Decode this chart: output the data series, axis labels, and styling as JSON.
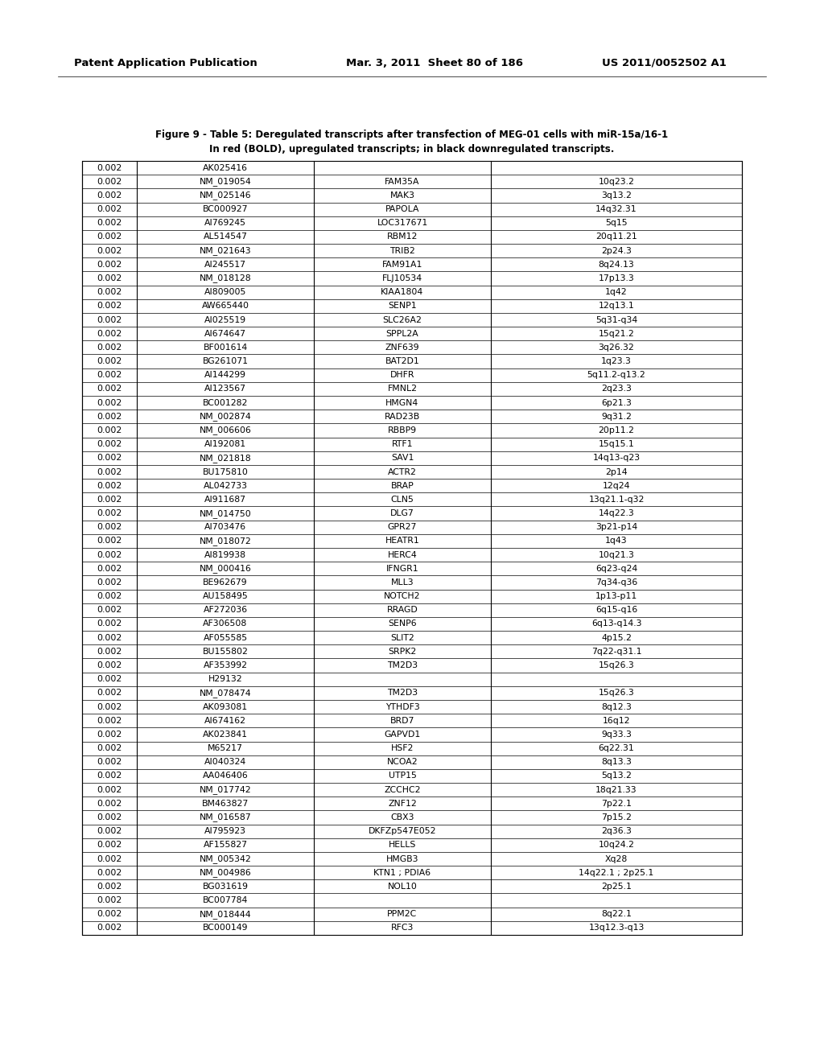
{
  "header_text_left": "Patent Application Publication",
  "header_text_mid": "Mar. 3, 2011  Sheet 80 of 186",
  "header_text_right": "US 2011/0052502 A1",
  "title_line1": "Figure 9 - Table 5: Deregulated transcripts after transfection of MEG-01 cells with miR-15a/16-1",
  "title_line2": "In red (BOLD), upregulated transcripts; in black downregulated transcripts.",
  "rows": [
    [
      "0.002",
      "AK025416",
      "",
      ""
    ],
    [
      "0.002",
      "NM_019054",
      "FAM35A",
      "10q23.2"
    ],
    [
      "0.002",
      "NM_025146",
      "MAK3",
      "3q13.2"
    ],
    [
      "0.002",
      "BC000927",
      "PAPOLA",
      "14q32.31"
    ],
    [
      "0.002",
      "AI769245",
      "LOC317671",
      "5q15"
    ],
    [
      "0.002",
      "AL514547",
      "RBM12",
      "20q11.21"
    ],
    [
      "0.002",
      "NM_021643",
      "TRIB2",
      "2p24.3"
    ],
    [
      "0.002",
      "AI245517",
      "FAM91A1",
      "8q24.13"
    ],
    [
      "0.002",
      "NM_018128",
      "FLJ10534",
      "17p13.3"
    ],
    [
      "0.002",
      "AI809005",
      "KIAA1804",
      "1q42"
    ],
    [
      "0.002",
      "AW665440",
      "SENP1",
      "12q13.1"
    ],
    [
      "0.002",
      "AI025519",
      "SLC26A2",
      "5q31-q34"
    ],
    [
      "0.002",
      "AI674647",
      "SPPL2A",
      "15q21.2"
    ],
    [
      "0.002",
      "BF001614",
      "ZNF639",
      "3q26.32"
    ],
    [
      "0.002",
      "BG261071",
      "BAT2D1",
      "1q23.3"
    ],
    [
      "0.002",
      "AI144299",
      "DHFR",
      "5q11.2-q13.2"
    ],
    [
      "0.002",
      "AI123567",
      "FMNL2",
      "2q23.3"
    ],
    [
      "0.002",
      "BC001282",
      "HMGN4",
      "6p21.3"
    ],
    [
      "0.002",
      "NM_002874",
      "RAD23B",
      "9q31.2"
    ],
    [
      "0.002",
      "NM_006606",
      "RBBP9",
      "20p11.2"
    ],
    [
      "0.002",
      "AI192081",
      "RTF1",
      "15q15.1"
    ],
    [
      "0.002",
      "NM_021818",
      "SAV1",
      "14q13-q23"
    ],
    [
      "0.002",
      "BU175810",
      "ACTR2",
      "2p14"
    ],
    [
      "0.002",
      "AL042733",
      "BRAP",
      "12q24"
    ],
    [
      "0.002",
      "AI911687",
      "CLN5",
      "13q21.1-q32"
    ],
    [
      "0.002",
      "NM_014750",
      "DLG7",
      "14q22.3"
    ],
    [
      "0.002",
      "AI703476",
      "GPR27",
      "3p21-p14"
    ],
    [
      "0.002",
      "NM_018072",
      "HEATR1",
      "1q43"
    ],
    [
      "0.002",
      "AI819938",
      "HERC4",
      "10q21.3"
    ],
    [
      "0.002",
      "NM_000416",
      "IFNGR1",
      "6q23-q24"
    ],
    [
      "0.002",
      "BE962679",
      "MLL3",
      "7q34-q36"
    ],
    [
      "0.002",
      "AU158495",
      "NOTCH2",
      "1p13-p11"
    ],
    [
      "0.002",
      "AF272036",
      "RRAGD",
      "6q15-q16"
    ],
    [
      "0.002",
      "AF306508",
      "SENP6",
      "6q13-q14.3"
    ],
    [
      "0.002",
      "AF055585",
      "SLIT2",
      "4p15.2"
    ],
    [
      "0.002",
      "BU155802",
      "SRPK2",
      "7q22-q31.1"
    ],
    [
      "0.002",
      "AF353992",
      "TM2D3",
      "15q26.3"
    ],
    [
      "0.002",
      "H29132",
      "",
      ""
    ],
    [
      "0.002",
      "NM_078474",
      "TM2D3",
      "15q26.3"
    ],
    [
      "0.002",
      "AK093081",
      "YTHDF3",
      "8q12.3"
    ],
    [
      "0.002",
      "AI674162",
      "BRD7",
      "16q12"
    ],
    [
      "0.002",
      "AK023841",
      "GAPVD1",
      "9q33.3"
    ],
    [
      "0.002",
      "M65217",
      "HSF2",
      "6q22.31"
    ],
    [
      "0.002",
      "AI040324",
      "NCOA2",
      "8q13.3"
    ],
    [
      "0.002",
      "AA046406",
      "UTP15",
      "5q13.2"
    ],
    [
      "0.002",
      "NM_017742",
      "ZCCHC2",
      "18q21.33"
    ],
    [
      "0.002",
      "BM463827",
      "ZNF12",
      "7p22.1"
    ],
    [
      "0.002",
      "NM_016587",
      "CBX3",
      "7p15.2"
    ],
    [
      "0.002",
      "AI795923",
      "DKFZp547E052",
      "2q36.3"
    ],
    [
      "0.002",
      "AF155827",
      "HELLS",
      "10q24.2"
    ],
    [
      "0.002",
      "NM_005342",
      "HMGB3",
      "Xq28"
    ],
    [
      "0.002",
      "NM_004986",
      "KTN1 ; PDIA6",
      "14q22.1 ; 2p25.1"
    ],
    [
      "0.002",
      "BG031619",
      "NOL10",
      "2p25.1"
    ],
    [
      "0.002",
      "BC007784",
      "",
      ""
    ],
    [
      "0.002",
      "NM_018444",
      "PPM2C",
      "8q22.1"
    ],
    [
      "0.002",
      "BC000149",
      "RFC3",
      "13q12.3-q13"
    ]
  ],
  "bg_color": "#ffffff",
  "text_color": "#000000",
  "line_color": "#000000",
  "header_font_size": 9.5,
  "title_font_size": 8.5,
  "cell_font_size": 7.8
}
